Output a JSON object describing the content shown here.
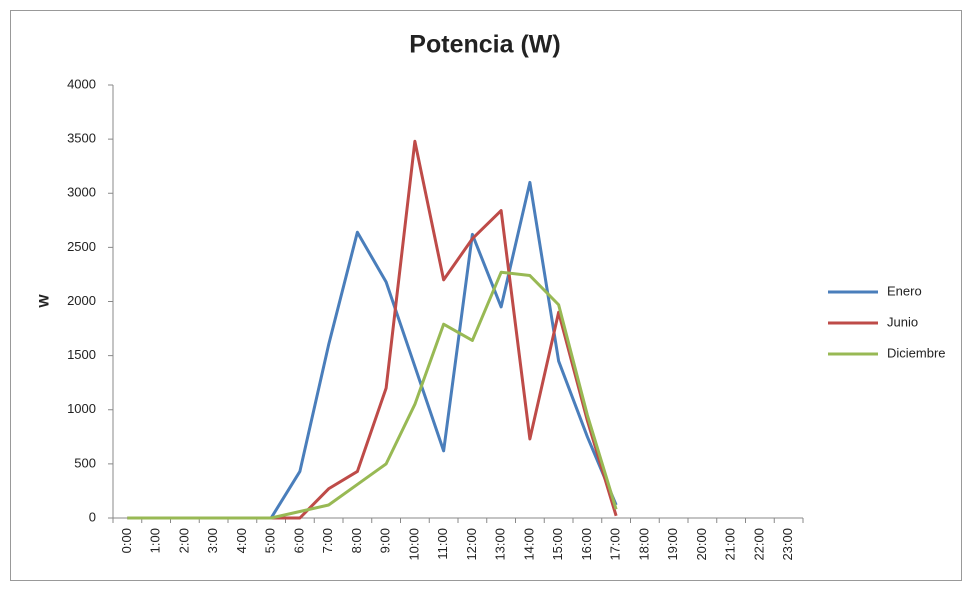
{
  "chart_data": {
    "type": "line",
    "title": "Potencia (W)",
    "y_label": "W",
    "categories": [
      "0:00",
      "1:00",
      "2:00",
      "3:00",
      "4:00",
      "5:00",
      "6:00",
      "7:00",
      "8:00",
      "9:00",
      "10:00",
      "11:00",
      "12:00",
      "13:00",
      "14:00",
      "15:00",
      "16:00",
      "17:00",
      "18:00",
      "19:00",
      "20:00",
      "21:00",
      "22:00",
      "23:00"
    ],
    "series": [
      {
        "name": "Enero",
        "color": "#4a7ebb",
        "values": [
          0,
          0,
          0,
          0,
          0,
          0,
          430,
          1600,
          2640,
          2180,
          1400,
          620,
          2620,
          1950,
          3100,
          1450,
          750,
          120,
          null,
          null,
          null,
          null,
          null,
          null
        ]
      },
      {
        "name": "Junio",
        "color": "#be4b48",
        "values": [
          0,
          0,
          0,
          0,
          0,
          0,
          0,
          270,
          430,
          1200,
          3480,
          2200,
          2580,
          2840,
          730,
          1900,
          900,
          20,
          null,
          null,
          null,
          null,
          null,
          null
        ]
      },
      {
        "name": "Diciembre",
        "color": "#98b954",
        "values": [
          0,
          0,
          0,
          0,
          0,
          0,
          60,
          120,
          310,
          500,
          1050,
          1790,
          1640,
          2270,
          2240,
          1970,
          950,
          80,
          null,
          null,
          null,
          null,
          null,
          null
        ]
      }
    ],
    "ylim": [
      0,
      4000
    ],
    "yticks": [
      0,
      500,
      1000,
      1500,
      2000,
      2500,
      3000,
      3500,
      4000
    ],
    "grid": false,
    "legend": "right"
  }
}
